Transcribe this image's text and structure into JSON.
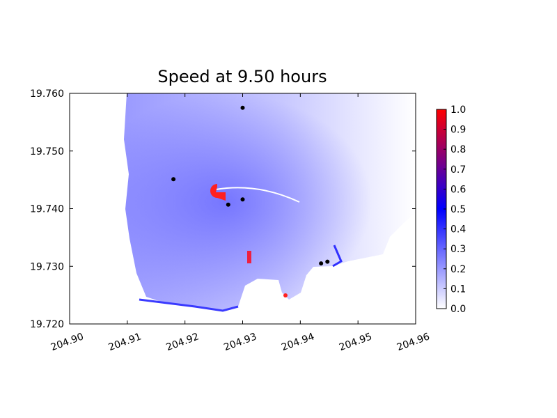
{
  "chart_data": {
    "type": "scatter",
    "title": "Speed at 9.50 hours",
    "x": [
      204.93,
      204.918,
      204.93,
      204.9275,
      204.9436,
      204.9447
    ],
    "y": [
      19.7575,
      19.7451,
      19.7416,
      19.7407,
      19.7305,
      19.7308
    ],
    "color": "#000000",
    "xlim": [
      204.9,
      204.96
    ],
    "xticks": [
      {
        "value": 204.9,
        "label": "204.90"
      },
      {
        "value": 204.91,
        "label": "204.91"
      },
      {
        "value": 204.92,
        "label": "204.92"
      },
      {
        "value": 204.93,
        "label": "204.93"
      },
      {
        "value": 204.94,
        "label": "204.94"
      },
      {
        "value": 204.95,
        "label": "204.95"
      },
      {
        "value": 204.96,
        "label": "204.96"
      }
    ],
    "ylim": [
      19.72,
      19.76
    ],
    "yticks": [
      {
        "value": 19.72,
        "label": "19.720"
      },
      {
        "value": 19.73,
        "label": "19.730"
      },
      {
        "value": 19.74,
        "label": "19.740"
      },
      {
        "value": 19.75,
        "label": "19.750"
      },
      {
        "value": 19.76,
        "label": "19.760"
      }
    ],
    "colorbar": {
      "lim": [
        0,
        1
      ],
      "colors": [
        "#ffffff",
        "#0000ff",
        "#ff0000"
      ],
      "ticks": [
        {
          "value": 0,
          "label": "0.0"
        },
        0.1,
        0.2,
        0.3,
        0.4,
        0.5,
        0.6,
        0.7,
        0.8,
        0.9,
        {
          "value": 1,
          "label": "1.0"
        }
      ]
    }
  }
}
